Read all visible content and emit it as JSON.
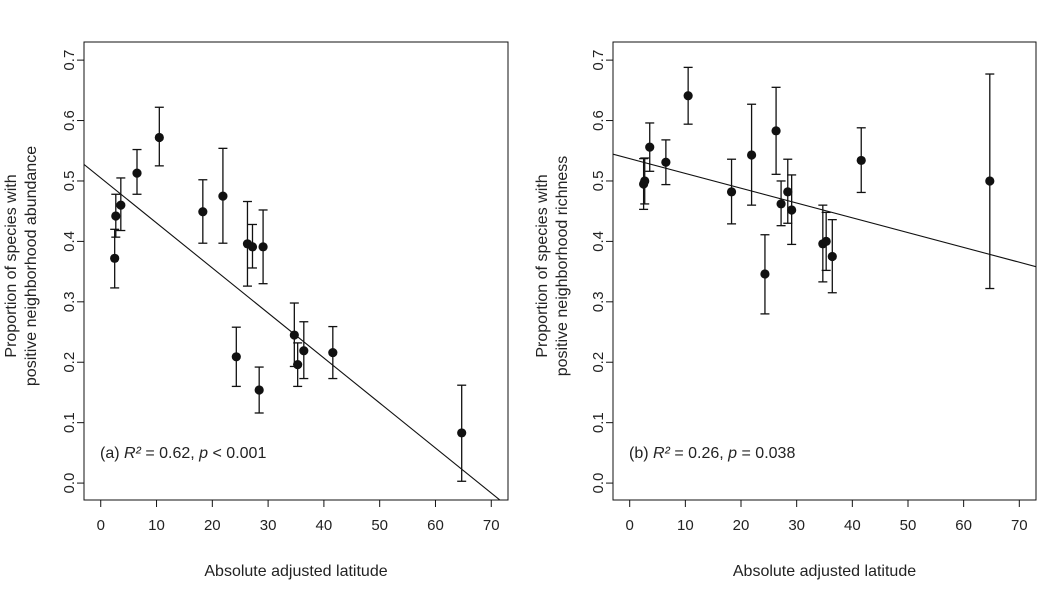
{
  "chart_data": [
    {
      "type": "scatter",
      "panel": "a",
      "title": "",
      "xlabel": "Absolute adjusted latitude",
      "ylabel": [
        "Proportion of species with",
        "positive neighborhood abundance"
      ],
      "xlim": [
        -3,
        73
      ],
      "ylim": [
        -0.028,
        0.73
      ],
      "xticks": [
        0,
        10,
        20,
        30,
        40,
        50,
        60,
        70
      ],
      "yticks": [
        "0.0",
        "0.1",
        "0.2",
        "0.3",
        "0.4",
        "0.5",
        "0.6",
        "0.7"
      ],
      "annotation": {
        "prefix": "(a) ",
        "stat1": "R²",
        "eq1": " = 0.62, ",
        "stat2": "p",
        "eq2": " < 0.001"
      },
      "regression": {
        "intercept": 0.505,
        "slope": -0.00745
      },
      "points": [
        {
          "x": 2.5,
          "y": 0.372,
          "lo": 0.323,
          "hi": 0.42
        },
        {
          "x": 2.7,
          "y": 0.442,
          "lo": 0.407,
          "hi": 0.478
        },
        {
          "x": 3.6,
          "y": 0.46,
          "lo": 0.418,
          "hi": 0.505
        },
        {
          "x": 6.5,
          "y": 0.513,
          "lo": 0.478,
          "hi": 0.552
        },
        {
          "x": 10.5,
          "y": 0.572,
          "lo": 0.525,
          "hi": 0.622
        },
        {
          "x": 18.3,
          "y": 0.449,
          "lo": 0.397,
          "hi": 0.502
        },
        {
          "x": 21.9,
          "y": 0.475,
          "lo": 0.397,
          "hi": 0.554
        },
        {
          "x": 24.3,
          "y": 0.209,
          "lo": 0.16,
          "hi": 0.258
        },
        {
          "x": 26.3,
          "y": 0.396,
          "lo": 0.326,
          "hi": 0.466
        },
        {
          "x": 27.2,
          "y": 0.391,
          "lo": 0.356,
          "hi": 0.428
        },
        {
          "x": 28.4,
          "y": 0.154,
          "lo": 0.116,
          "hi": 0.192
        },
        {
          "x": 29.1,
          "y": 0.391,
          "lo": 0.33,
          "hi": 0.452
        },
        {
          "x": 34.7,
          "y": 0.245,
          "lo": 0.193,
          "hi": 0.298
        },
        {
          "x": 35.3,
          "y": 0.196,
          "lo": 0.16,
          "hi": 0.232
        },
        {
          "x": 36.4,
          "y": 0.219,
          "lo": 0.173,
          "hi": 0.267
        },
        {
          "x": 41.6,
          "y": 0.216,
          "lo": 0.173,
          "hi": 0.259
        },
        {
          "x": 64.7,
          "y": 0.083,
          "lo": 0.003,
          "hi": 0.162
        }
      ]
    },
    {
      "type": "scatter",
      "panel": "b",
      "title": "",
      "xlabel": "Absolute adjusted latitude",
      "ylabel": [
        "Proportion of species with",
        "positive neighborhood richness"
      ],
      "xlim": [
        -3,
        73
      ],
      "ylim": [
        -0.028,
        0.73
      ],
      "xticks": [
        0,
        10,
        20,
        30,
        40,
        50,
        60,
        70
      ],
      "yticks": [
        "0.0",
        "0.1",
        "0.2",
        "0.3",
        "0.4",
        "0.5",
        "0.6",
        "0.7"
      ],
      "annotation": {
        "prefix": "(b) ",
        "stat1": "R²",
        "eq1": " = 0.26, ",
        "stat2": "p",
        "eq2": " = 0.038"
      },
      "regression": {
        "intercept": 0.537,
        "slope": -0.00245
      },
      "points": [
        {
          "x": 2.5,
          "y": 0.495,
          "lo": 0.453,
          "hi": 0.537
        },
        {
          "x": 2.7,
          "y": 0.5,
          "lo": 0.462,
          "hi": 0.538
        },
        {
          "x": 3.6,
          "y": 0.556,
          "lo": 0.516,
          "hi": 0.596
        },
        {
          "x": 6.5,
          "y": 0.531,
          "lo": 0.494,
          "hi": 0.568
        },
        {
          "x": 10.5,
          "y": 0.641,
          "lo": 0.594,
          "hi": 0.688
        },
        {
          "x": 18.3,
          "y": 0.482,
          "lo": 0.429,
          "hi": 0.536
        },
        {
          "x": 21.9,
          "y": 0.543,
          "lo": 0.46,
          "hi": 0.627
        },
        {
          "x": 24.3,
          "y": 0.346,
          "lo": 0.28,
          "hi": 0.411
        },
        {
          "x": 26.3,
          "y": 0.583,
          "lo": 0.511,
          "hi": 0.655
        },
        {
          "x": 27.2,
          "y": 0.462,
          "lo": 0.426,
          "hi": 0.5
        },
        {
          "x": 28.4,
          "y": 0.482,
          "lo": 0.43,
          "hi": 0.536
        },
        {
          "x": 29.1,
          "y": 0.452,
          "lo": 0.395,
          "hi": 0.51
        },
        {
          "x": 34.7,
          "y": 0.396,
          "lo": 0.333,
          "hi": 0.46
        },
        {
          "x": 35.3,
          "y": 0.4,
          "lo": 0.352,
          "hi": 0.448
        },
        {
          "x": 36.4,
          "y": 0.375,
          "lo": 0.315,
          "hi": 0.436
        },
        {
          "x": 41.6,
          "y": 0.534,
          "lo": 0.481,
          "hi": 0.588
        },
        {
          "x": 64.7,
          "y": 0.5,
          "lo": 0.322,
          "hi": 0.677
        }
      ]
    }
  ],
  "colors": {
    "ink": "#111111",
    "axis": "#222222"
  }
}
